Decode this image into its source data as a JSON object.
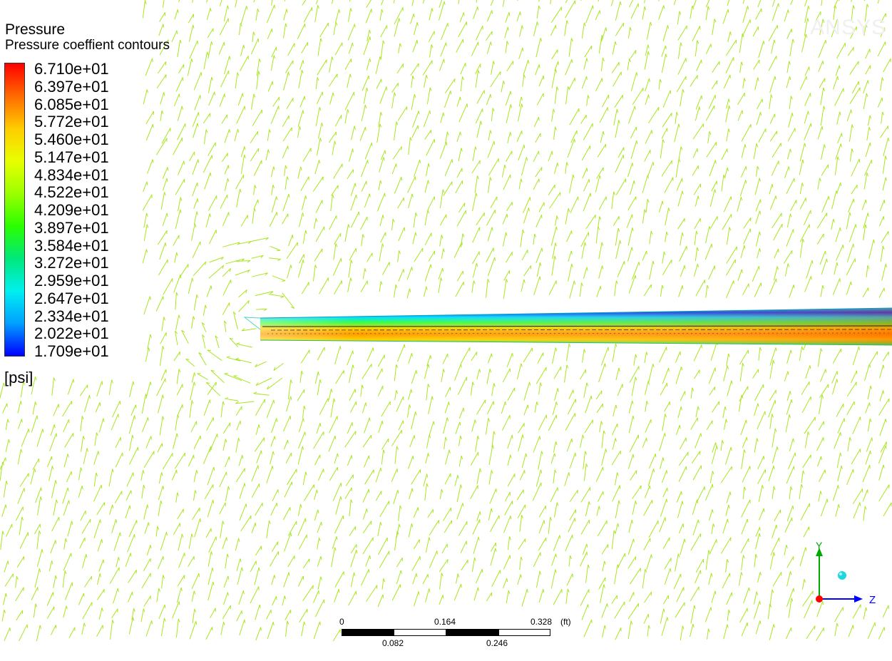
{
  "legend": {
    "title": "Pressure",
    "subtitle": "Pressure coeffient contours",
    "unit": "[psi]",
    "labels": [
      "6.710e+01",
      "6.397e+01",
      "6.085e+01",
      "5.772e+01",
      "5.460e+01",
      "5.147e+01",
      "4.834e+01",
      "4.522e+01",
      "4.209e+01",
      "3.897e+01",
      "3.584e+01",
      "3.272e+01",
      "2.959e+01",
      "2.647e+01",
      "2.334e+01",
      "2.022e+01",
      "1.709e+01"
    ],
    "gradient_colors": [
      "#ff0000",
      "#ff6a00",
      "#ffcc00",
      "#e8ff00",
      "#9cff00",
      "#2bff00",
      "#00e87a",
      "#00f0f0",
      "#00a0ff",
      "#0000ff"
    ]
  },
  "watermark": "ANSYS",
  "scale": {
    "top_labels": [
      "0",
      "0.164",
      "0.328",
      "(ft)"
    ],
    "bottom_labels": [
      "0.082",
      "0.246"
    ]
  },
  "triad": {
    "y_label": "Y",
    "z_label": "Z",
    "y_color": "#00aa00",
    "z_color": "#0000ff",
    "origin_color": "#ff0000"
  },
  "colors": {
    "vector": "#a8e61e",
    "background": "#ffffff"
  }
}
